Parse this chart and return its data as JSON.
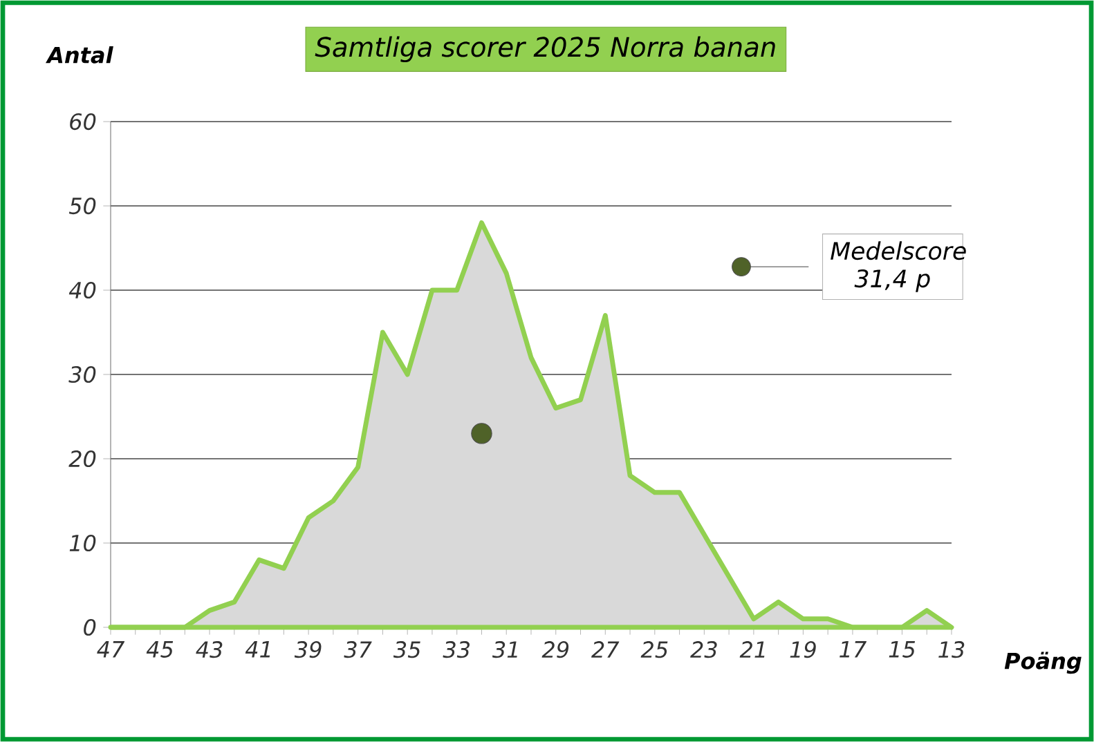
{
  "chart_data": {
    "type": "area",
    "title": "Samtliga scorer 2025 Norra banan",
    "xlabel": "Poäng",
    "ylabel": "Antal",
    "x": [
      47,
      46,
      45,
      44,
      43,
      42,
      41,
      40,
      39,
      38,
      37,
      36,
      35,
      34,
      33,
      32,
      31,
      30,
      29,
      28,
      27,
      26,
      25,
      24,
      23,
      22,
      21,
      20,
      19,
      18,
      17,
      16,
      15,
      14,
      13
    ],
    "series": [
      {
        "color": "#92d050",
        "values": [
          0,
          0,
          0,
          0,
          2,
          3,
          8,
          7,
          13,
          15,
          19,
          35,
          30,
          40,
          40,
          48,
          42,
          32,
          26,
          27,
          37,
          18,
          16,
          16,
          11,
          6,
          1,
          3,
          1,
          1,
          0,
          0,
          0,
          2,
          0
        ]
      },
      {
        "type": "scatter",
        "name": "Medelscore 31,4 p",
        "color": "#4f6228",
        "marker": "circle",
        "x": [
          32
        ],
        "values": [
          23
        ]
      }
    ],
    "xlim": [
      47,
      13
    ],
    "xticks": [
      47,
      {
        "value": 46,
        "label": null
      },
      45,
      {
        "value": 44,
        "label": null
      },
      43,
      {
        "value": 42,
        "label": null
      },
      41,
      {
        "value": 40,
        "label": null
      },
      39,
      {
        "value": 38,
        "label": null
      },
      37,
      {
        "value": 36,
        "label": null
      },
      35,
      {
        "value": 34,
        "label": null
      },
      33,
      {
        "value": 32,
        "label": null
      },
      31,
      {
        "value": 30,
        "label": null
      },
      29,
      {
        "value": 28,
        "label": null
      },
      27,
      {
        "value": 26,
        "label": null
      },
      25,
      {
        "value": 24,
        "label": null
      },
      23,
      {
        "value": 22,
        "label": null
      },
      21,
      {
        "value": 20,
        "label": null
      },
      19,
      {
        "value": 18,
        "label": null
      },
      17,
      {
        "value": 16,
        "label": null
      },
      15,
      {
        "value": 14,
        "label": null
      },
      13
    ],
    "ylim": [
      0,
      60
    ],
    "yticks": [
      0,
      10,
      20,
      30,
      40,
      50,
      60
    ],
    "grid": "y",
    "legend": "top right"
  }
}
